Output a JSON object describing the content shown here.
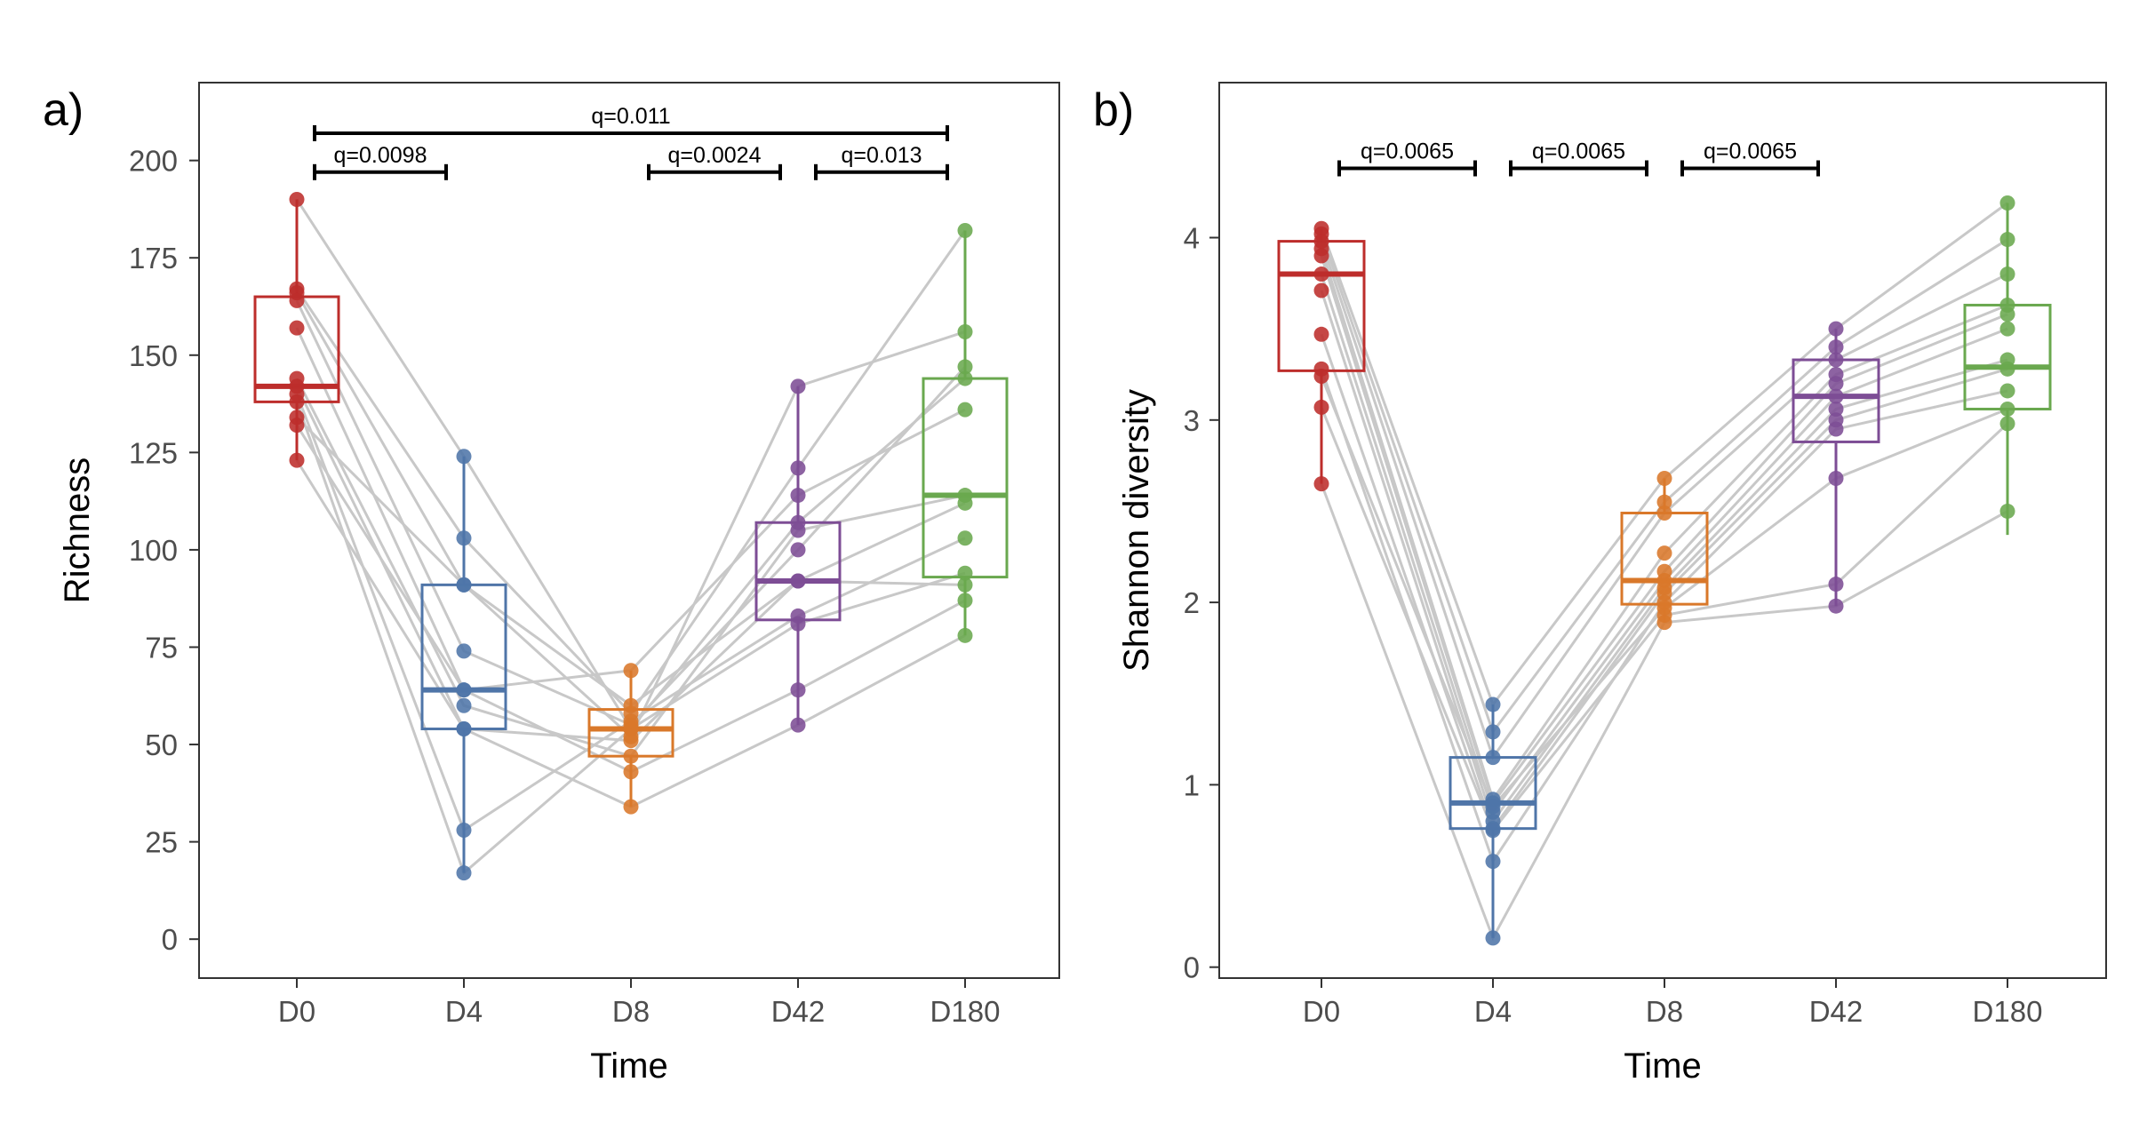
{
  "colors": {
    "D0": "#bd2d2b",
    "D4": "#4f75a8",
    "D8": "#d9782a",
    "D42": "#7d4d95",
    "D180": "#6aa84f",
    "pair_line": "#c8c8c8"
  },
  "chart_data": [
    {
      "type": "box",
      "panel_label": "a)",
      "xlabel": "Time",
      "ylabel": "Richness",
      "categories": [
        "D0",
        "D4",
        "D8",
        "D42",
        "D180"
      ],
      "ylim": [
        -10,
        220
      ],
      "yticks": [
        0,
        25,
        50,
        75,
        100,
        125,
        150,
        175,
        200
      ],
      "ytick_labels": [
        "0",
        "25",
        "50",
        "75",
        "100",
        "125",
        "150",
        "175",
        "200"
      ],
      "boxes": [
        {
          "q1": 138,
          "median": 142,
          "q3": 165,
          "whisker_low": 123,
          "whisker_high": 190
        },
        {
          "q1": 54,
          "median": 64,
          "q3": 91,
          "whisker_low": 17,
          "whisker_high": 124
        },
        {
          "q1": 47,
          "median": 54,
          "q3": 59,
          "whisker_low": 34,
          "whisker_high": 69
        },
        {
          "q1": 82,
          "median": 92,
          "q3": 107,
          "whisker_low": 55,
          "whisker_high": 142
        },
        {
          "q1": 93,
          "median": 114,
          "q3": 144,
          "whisker_low": 78,
          "whisker_high": 182
        }
      ],
      "subjects": [
        [
          190,
          124,
          54,
          107,
          144
        ],
        [
          167,
          103,
          58,
          121,
          182
        ],
        [
          166,
          91,
          52,
          142,
          156
        ],
        [
          164,
          74,
          55,
          100,
          147
        ],
        [
          157,
          64,
          69,
          114,
          136
        ],
        [
          144,
          60,
          47,
          105,
          114
        ],
        [
          142,
          54,
          51,
          92,
          112
        ],
        [
          140,
          28,
          56,
          83,
          103
        ],
        [
          138,
          17,
          54,
          81,
          94
        ],
        [
          134,
          91,
          60,
          92,
          91
        ],
        [
          132,
          64,
          43,
          64,
          87
        ],
        [
          123,
          54,
          34,
          55,
          78
        ]
      ],
      "comparisons": [
        {
          "from": 0,
          "to": 1,
          "label": "q=0.0098",
          "y": 197
        },
        {
          "from": 3,
          "to": 4,
          "label": "q=0.013",
          "y": 197
        },
        {
          "from": 2,
          "to": 3,
          "label": "q=0.0024",
          "y": 197
        },
        {
          "from": 0,
          "to": 4,
          "label": "q=0.011",
          "y": 207
        }
      ]
    },
    {
      "type": "box",
      "panel_label": "b)",
      "xlabel": "Time",
      "ylabel": "Shannon diversity",
      "categories": [
        "D0",
        "D4",
        "D8",
        "D42",
        "D180"
      ],
      "ylim": [
        -0.06,
        4.85
      ],
      "yticks": [
        0,
        1,
        2,
        3,
        4
      ],
      "ytick_labels": [
        "0",
        "1",
        "2",
        "3",
        "4"
      ],
      "boxes": [
        {
          "q1": 3.27,
          "median": 3.8,
          "q3": 3.98,
          "whisker_low": 2.65,
          "whisker_high": 4.05
        },
        {
          "q1": 0.76,
          "median": 0.9,
          "q3": 1.15,
          "whisker_low": 0.16,
          "whisker_high": 1.44
        },
        {
          "q1": 1.99,
          "median": 2.12,
          "q3": 2.49,
          "whisker_low": 1.89,
          "whisker_high": 2.68
        },
        {
          "q1": 2.88,
          "median": 3.13,
          "q3": 3.33,
          "whisker_low": 1.98,
          "whisker_high": 3.5
        },
        {
          "q1": 3.06,
          "median": 3.29,
          "q3": 3.63,
          "whisker_low": 2.37,
          "whisker_high": 4.19
        }
      ],
      "subjects": [
        [
          4.05,
          1.44,
          2.68,
          3.5,
          4.19
        ],
        [
          4.02,
          1.29,
          2.55,
          3.4,
          3.99
        ],
        [
          3.98,
          1.15,
          2.49,
          3.33,
          3.8
        ],
        [
          3.94,
          0.92,
          2.27,
          3.25,
          3.63
        ],
        [
          3.9,
          0.9,
          2.17,
          3.2,
          3.58
        ],
        [
          3.8,
          0.85,
          2.12,
          3.13,
          3.5
        ],
        [
          3.71,
          0.8,
          2.08,
          3.06,
          3.33
        ],
        [
          3.47,
          0.76,
          2.05,
          3.0,
          3.28
        ],
        [
          3.28,
          0.58,
          2.0,
          2.95,
          3.16
        ],
        [
          3.24,
          0.88,
          1.97,
          2.68,
          3.06
        ],
        [
          3.07,
          0.75,
          1.93,
          2.1,
          2.98
        ],
        [
          2.65,
          0.16,
          1.89,
          1.98,
          2.5
        ]
      ],
      "comparisons": [
        {
          "from": 0,
          "to": 1,
          "label": "q=0.0065",
          "y": 4.38
        },
        {
          "from": 1,
          "to": 2,
          "label": "q=0.0065",
          "y": 4.38
        },
        {
          "from": 2,
          "to": 3,
          "label": "q=0.0065",
          "y": 4.38
        }
      ]
    }
  ]
}
